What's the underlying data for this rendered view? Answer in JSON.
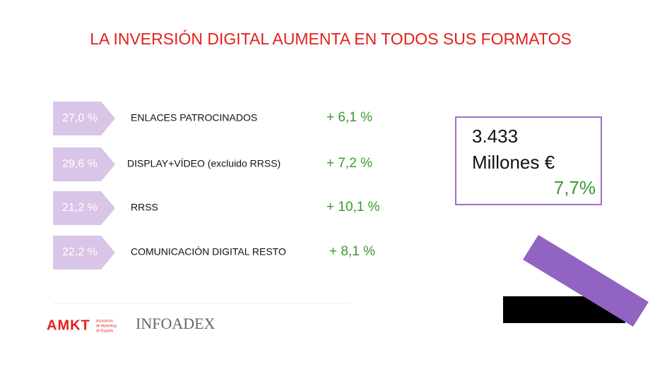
{
  "header": {
    "title": "LA INVERSIÓN DIGITAL AUMENTA EN TODOS SUS FORMATOS"
  },
  "rows": [
    {
      "share": "27,0 %",
      "label": "ENLACES PATROCINADOS",
      "growth": "+ 6,1 %"
    },
    {
      "share": "29,6 %",
      "label": "DISPLAY+VÍDEO (excluido RRSS)",
      "growth": "+ 7,2 %"
    },
    {
      "share": "21,2 %",
      "label": "RRSS",
      "growth": "+ 10,1 %"
    },
    {
      "share": "22,2 %",
      "label": "COMUNICACIÓN DIGITAL RESTO",
      "growth": "+ 8,1 %"
    }
  ],
  "total": {
    "amount": "3.433",
    "unit": "Millones €",
    "growth": "7,7%"
  },
  "logos": {
    "amkt": "AMKT",
    "amkt_caption": [
      "Asociación",
      "de Marketing",
      "de España"
    ],
    "infoadex": "INFOADEX"
  }
}
